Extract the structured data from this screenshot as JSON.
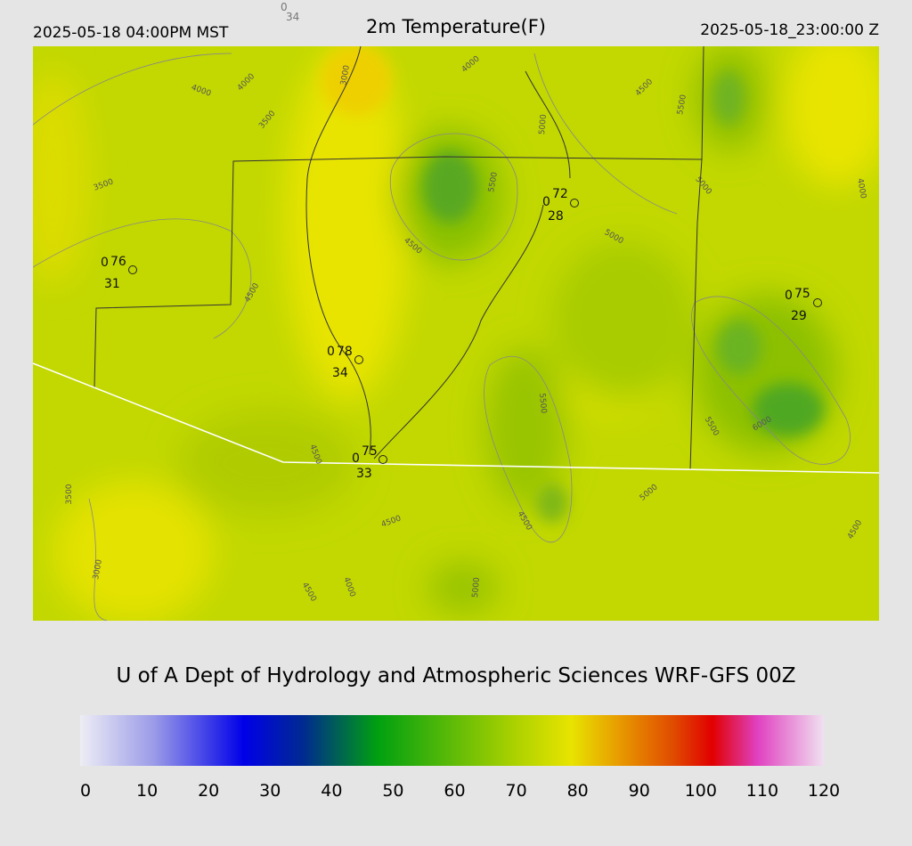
{
  "header": {
    "left": "2025-05-18 04:00PM MST",
    "title": "2m Temperature(F)",
    "right": "2025-05-18_23:00:00 Z",
    "station_top": {
      "wind": "0",
      "dewpoint": 34
    }
  },
  "map": {
    "stations": [
      {
        "wind": "0",
        "temperature": 76,
        "dewpoint": 31
      },
      {
        "wind": "0",
        "temperature": 78,
        "dewpoint": 34
      },
      {
        "wind": "0",
        "temperature": 75,
        "dewpoint": 33
      },
      {
        "wind": "0",
        "temperature": 72,
        "dewpoint": 28
      },
      {
        "wind": "0",
        "temperature": 75,
        "dewpoint": 29
      }
    ],
    "contour_labels": [
      "4000",
      "4000",
      "3000",
      "3500",
      "3500",
      "4000",
      "4500",
      "5000",
      "5500",
      "5000",
      "4500",
      "5000",
      "4500",
      "5500",
      "6000",
      "4500",
      "3500",
      "3000",
      "4500",
      "4000",
      "4500",
      "5000",
      "4500",
      "5000",
      "5500",
      "4500",
      "5500",
      "4000"
    ]
  },
  "credit": "U of A Dept of Hydrology and Atmospheric Sciences WRF-GFS 00Z",
  "colorbar": {
    "lim": [
      0,
      120
    ],
    "ticks": [
      0,
      10,
      20,
      30,
      40,
      50,
      60,
      70,
      80,
      90,
      100,
      110,
      120
    ]
  }
}
